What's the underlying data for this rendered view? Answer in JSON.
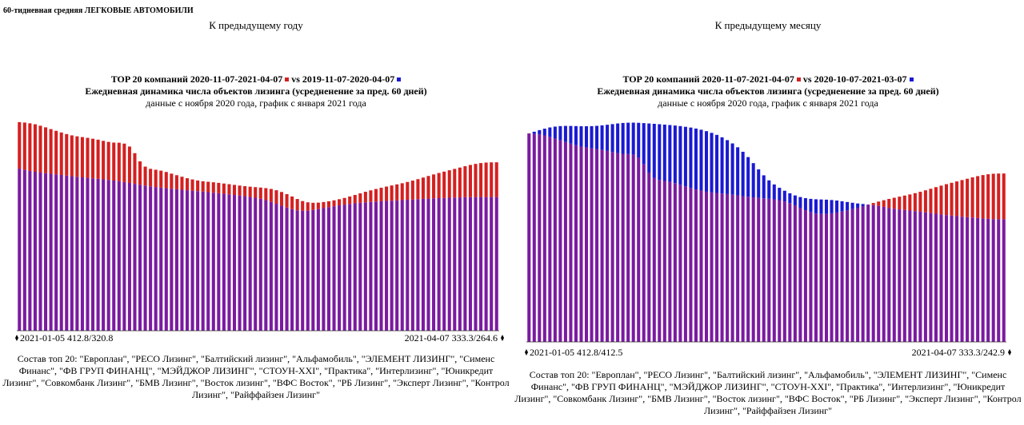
{
  "page_title": "60-тидневная средняя ЛЕГКОВЫЕ АВТОМОБИЛИ",
  "colors": {
    "red": "#d42020",
    "blue": "#1a1ad2",
    "overlap": "#7a1ba0"
  },
  "composition": "Состав топ 20: \"Европлан\", \"РЕСО Лизинг\", \"Балтийский лизинг\", \"Альфамобиль\", \"ЭЛЕМЕНТ ЛИЗИНГ\", \"Сименс Финанс\", \"ФВ ГРУП ФИНАНЦ\", \"МЭЙДЖОР ЛИЗИНГ\", \"СТОУН-XXI\", \"Практика\", \"Интерлизинг\", \"Юникредит Лизинг\", \"Совкомбанк Лизинг\", \"БМВ Лизинг\", \"Восток лизинг\", \"ВФС Восток\", \"РБ Лизинг\", \"Эксперт Лизинг\", \"Контрол Лизинг\", \"Райффайзен Лизинг\"",
  "chart_data": [
    {
      "type": "bar",
      "heading": "К предыдущему году",
      "title_line1_a": "TOP 20 компаний 2020-11-07-2021-04-07",
      "title_line1_b": "vs 2019-11-07-2020-04-07",
      "title_line2": "Ежедневная динамика числа объектов лизинга (усредненение за пред. 60 дней)",
      "title_line3": "данные с ноября 2020 года, график с января 2021 года",
      "start_label": "2021-01-05 412.8/320.8",
      "end_label": "2021-04-07 333.3/264.6",
      "x_start": "2021-01-05",
      "x_end": "2021-04-07",
      "series": [
        {
          "name": "2020-11-07-2021-04-07",
          "color": "red",
          "values": [
            412.8,
            412.0,
            410.5,
            408.6,
            405.7,
            402.5,
            399.0,
            395.6,
            392.3,
            389.2,
            386.6,
            384.7,
            383.2,
            381.7,
            380.0,
            378.1,
            375.8,
            373.7,
            372.3,
            372.1,
            370.3,
            364.5,
            351.4,
            335.2,
            324.8,
            320.4,
            318.6,
            316.8,
            314.2,
            310.9,
            307.8,
            304.8,
            301.8,
            299.4,
            297.3,
            295.8,
            294.8,
            293.8,
            292.6,
            291.3,
            290.0,
            288.6,
            287.3,
            286.1,
            285.1,
            284.2,
            283.3,
            282.2,
            280.6,
            278.1,
            274.6,
            270.4,
            265.6,
            260.7,
            256.6,
            254.1,
            253.2,
            253.5,
            254.7,
            256.2,
            258.1,
            260.3,
            262.8,
            265.6,
            268.7,
            271.9,
            275.0,
            277.8,
            280.5,
            283.0,
            285.3,
            287.5,
            289.6,
            291.9,
            294.4,
            297.1,
            300.0,
            303.1,
            306.3,
            309.3,
            312.2,
            314.9,
            317.6,
            320.3,
            322.9,
            325.6,
            328.1,
            330.2,
            331.8,
            332.8,
            333.2,
            333.3
          ]
        },
        {
          "name": "2019-11-07-2020-04-07",
          "color": "blue",
          "values": [
            320.8,
            318.3,
            316.3,
            314.6,
            313.1,
            311.8,
            310.7,
            309.5,
            308.3,
            307.0,
            305.8,
            304.6,
            303.5,
            302.6,
            301.6,
            300.7,
            299.6,
            298.5,
            297.2,
            295.8,
            294.2,
            292.5,
            290.7,
            288.9,
            287.2,
            285.7,
            284.4,
            283.2,
            282.1,
            281.0,
            280.0,
            279.0,
            278.1,
            277.2,
            276.3,
            275.3,
            274.3,
            273.2,
            272.1,
            271.0,
            269.9,
            268.7,
            267.6,
            266.3,
            264.9,
            263.2,
            261.1,
            258.4,
            255.0,
            251.3,
            247.5,
            243.8,
            240.6,
            238.3,
            237.4,
            237.7,
            239.0,
            240.8,
            242.7,
            244.6,
            246.4,
            248.1,
            249.6,
            250.9,
            252.1,
            253.2,
            254.1,
            254.9,
            255.6,
            256.2,
            256.8,
            257.4,
            257.9,
            258.5,
            259.2,
            259.8,
            260.4,
            261.0,
            261.5,
            262.0,
            262.4,
            262.8,
            263.2,
            263.6,
            263.9,
            264.2,
            264.4,
            264.6,
            264.6,
            264.6,
            264.6,
            264.6
          ]
        }
      ]
    },
    {
      "type": "bar",
      "heading": "К предыдущему месяцу",
      "title_line1_a": "TOP 20 компаний 2020-11-07-2021-04-07",
      "title_line1_b": "vs 2020-10-07-2021-03-07",
      "title_line2": "Ежедневная динамика числа объектов лизинга (усредненение за пред. 60 дней)",
      "title_line3": "данные с ноября 2020 года, график с января 2021 года",
      "start_label": "2021-01-05 412.8/412.5",
      "end_label": "2021-04-07 333.3/242.9",
      "x_start": "2021-01-05",
      "x_end": "2021-04-07",
      "series": [
        {
          "name": "2020-11-07-2021-04-07",
          "color": "red",
          "values": [
            412.8,
            412.0,
            410.5,
            408.6,
            405.7,
            402.5,
            399.0,
            395.6,
            392.3,
            389.2,
            386.6,
            384.7,
            383.2,
            381.7,
            380.0,
            378.1,
            375.8,
            373.7,
            372.3,
            372.1,
            370.3,
            364.5,
            351.4,
            335.2,
            324.8,
            320.4,
            318.6,
            316.8,
            314.2,
            310.9,
            307.8,
            304.8,
            301.8,
            299.4,
            297.3,
            295.8,
            294.8,
            293.8,
            292.6,
            291.3,
            290.0,
            288.6,
            287.3,
            286.1,
            285.1,
            284.2,
            283.3,
            282.2,
            280.6,
            278.1,
            274.6,
            270.4,
            265.6,
            260.7,
            256.6,
            254.1,
            253.2,
            253.5,
            254.7,
            256.2,
            258.1,
            260.3,
            262.8,
            265.6,
            268.7,
            271.9,
            275.0,
            277.8,
            280.5,
            283.0,
            285.3,
            287.5,
            289.6,
            291.9,
            294.4,
            297.1,
            300.0,
            303.1,
            306.3,
            309.3,
            312.2,
            314.9,
            317.6,
            320.3,
            322.9,
            325.6,
            328.1,
            330.2,
            331.8,
            332.8,
            333.2,
            333.3
          ]
        },
        {
          "name": "2020-10-07-2021-03-07",
          "color": "blue",
          "values": [
            412.5,
            415.9,
            419.1,
            422.0,
            424.4,
            426.1,
            427.1,
            427.5,
            427.4,
            427.1,
            426.8,
            426.8,
            427.0,
            427.6,
            428.5,
            429.7,
            431.0,
            432.3,
            433.3,
            433.8,
            433.9,
            433.6,
            433.0,
            432.3,
            431.6,
            430.8,
            430.0,
            429.2,
            428.2,
            427.1,
            425.7,
            424.2,
            422.2,
            419.9,
            417.1,
            413.7,
            409.7,
            404.9,
            399.3,
            392.8,
            385.2,
            376.3,
            365.8,
            353.8,
            341.4,
            329.7,
            319.7,
            311.6,
            305.0,
            299.2,
            294.1,
            289.9,
            286.7,
            284.5,
            283.1,
            282.3,
            281.9,
            281.5,
            280.8,
            279.8,
            278.4,
            276.9,
            275.4,
            274.0,
            272.9,
            271.8,
            270.6,
            269.1,
            267.3,
            265.4,
            263.7,
            262.3,
            261.2,
            260.1,
            259.0,
            257.8,
            256.5,
            255.1,
            253.7,
            252.3,
            251.1,
            250.0,
            248.9,
            247.9,
            247.0,
            246.1,
            245.2,
            244.4,
            243.7,
            243.2,
            242.9,
            242.9
          ]
        }
      ]
    }
  ]
}
